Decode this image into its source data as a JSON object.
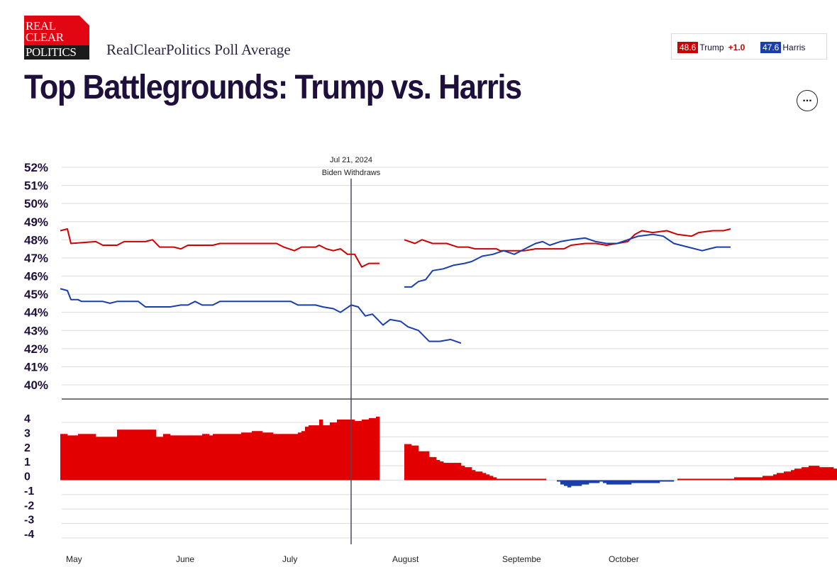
{
  "header": {
    "logo": [
      "REAL",
      "CLEAR",
      "POLITICS"
    ],
    "site_title": "RealClearPolitics Poll Average",
    "page_title": "Top Battlegrounds: Trump vs. Harris",
    "more_icon": "ellipsis-icon"
  },
  "legend": {
    "trump": {
      "value": "48.6",
      "name": "Trump",
      "spread": "+1.0",
      "color": "#cc0000"
    },
    "harris": {
      "value": "47.6",
      "name": "Harris",
      "color": "#1a3faa"
    }
  },
  "chart_data": {
    "type": "line",
    "x_range": [
      "2024-04-30",
      "2024-11-05"
    ],
    "x_ticks": [
      {
        "label": "May",
        "date": "2024-05-01"
      },
      {
        "label": "June",
        "date": "2024-06-01"
      },
      {
        "label": "July",
        "date": "2024-07-01"
      },
      {
        "label": "August",
        "date": "2024-08-01"
      },
      {
        "label": "Septembe",
        "date": "2024-09-01"
      },
      {
        "label": "October",
        "date": "2024-10-01"
      }
    ],
    "y_ticks": [
      "52%",
      "51%",
      "50%",
      "49%",
      "48%",
      "47%",
      "46%",
      "45%",
      "44%",
      "43%",
      "42%",
      "41%",
      "40%"
    ],
    "ylim": [
      40,
      52
    ],
    "annotation": {
      "date": "2024-07-21",
      "line1": "Jul 21, 2024",
      "line2": "Biden Withdraws"
    },
    "series": [
      {
        "name": "Trump",
        "color": "#cc0000",
        "segments": [
          [
            [
              "2024-04-30",
              48.5
            ],
            [
              "2024-05-02",
              48.6
            ],
            [
              "2024-05-03",
              47.8
            ],
            [
              "2024-05-10",
              47.9
            ],
            [
              "2024-05-12",
              47.7
            ],
            [
              "2024-05-16",
              47.7
            ],
            [
              "2024-05-18",
              47.9
            ],
            [
              "2024-05-24",
              47.9
            ],
            [
              "2024-05-26",
              48.0
            ],
            [
              "2024-05-28",
              47.6
            ],
            [
              "2024-06-01",
              47.6
            ],
            [
              "2024-06-03",
              47.5
            ],
            [
              "2024-06-05",
              47.7
            ],
            [
              "2024-06-12",
              47.7
            ],
            [
              "2024-06-14",
              47.8
            ],
            [
              "2024-06-30",
              47.8
            ],
            [
              "2024-07-02",
              47.6
            ],
            [
              "2024-07-05",
              47.4
            ],
            [
              "2024-07-07",
              47.6
            ],
            [
              "2024-07-11",
              47.6
            ],
            [
              "2024-07-12",
              47.7
            ],
            [
              "2024-07-14",
              47.5
            ],
            [
              "2024-07-16",
              47.4
            ],
            [
              "2024-07-18",
              47.5
            ],
            [
              "2024-07-20",
              47.2
            ],
            [
              "2024-07-22",
              47.2
            ],
            [
              "2024-07-24",
              46.5
            ],
            [
              "2024-07-26",
              46.7
            ],
            [
              "2024-07-29",
              46.7
            ]
          ],
          [
            [
              "2024-08-05",
              48.0
            ],
            [
              "2024-08-08",
              47.8
            ],
            [
              "2024-08-10",
              48.0
            ],
            [
              "2024-08-13",
              47.8
            ],
            [
              "2024-08-17",
              47.8
            ],
            [
              "2024-08-20",
              47.6
            ],
            [
              "2024-08-23",
              47.6
            ],
            [
              "2024-08-25",
              47.5
            ],
            [
              "2024-08-31",
              47.5
            ],
            [
              "2024-09-01",
              47.4
            ],
            [
              "2024-09-05",
              47.4
            ],
            [
              "2024-09-08",
              47.4
            ],
            [
              "2024-09-11",
              47.5
            ],
            [
              "2024-09-19",
              47.5
            ],
            [
              "2024-09-21",
              47.7
            ],
            [
              "2024-09-25",
              47.8
            ],
            [
              "2024-09-28",
              47.8
            ],
            [
              "2024-10-01",
              47.7
            ],
            [
              "2024-10-04",
              47.8
            ],
            [
              "2024-10-07",
              47.9
            ],
            [
              "2024-10-09",
              48.3
            ],
            [
              "2024-10-11",
              48.5
            ],
            [
              "2024-10-14",
              48.4
            ],
            [
              "2024-10-18",
              48.5
            ],
            [
              "2024-10-21",
              48.3
            ],
            [
              "2024-10-25",
              48.2
            ],
            [
              "2024-10-27",
              48.4
            ],
            [
              "2024-10-31",
              48.5
            ],
            [
              "2024-11-03",
              48.5
            ],
            [
              "2024-11-05",
              48.6
            ]
          ]
        ]
      },
      {
        "name": "Harris",
        "color": "#1a3faa",
        "segments": [
          [
            [
              "2024-04-30",
              45.3
            ],
            [
              "2024-05-02",
              45.2
            ],
            [
              "2024-05-03",
              44.7
            ],
            [
              "2024-05-05",
              44.7
            ],
            [
              "2024-05-06",
              44.6
            ],
            [
              "2024-05-12",
              44.6
            ],
            [
              "2024-05-14",
              44.5
            ],
            [
              "2024-05-16",
              44.6
            ],
            [
              "2024-05-22",
              44.6
            ],
            [
              "2024-05-24",
              44.3
            ],
            [
              "2024-05-31",
              44.3
            ],
            [
              "2024-06-03",
              44.4
            ],
            [
              "2024-06-05",
              44.4
            ],
            [
              "2024-06-07",
              44.6
            ],
            [
              "2024-06-09",
              44.4
            ],
            [
              "2024-06-12",
              44.4
            ],
            [
              "2024-06-14",
              44.6
            ],
            [
              "2024-06-21",
              44.6
            ],
            [
              "2024-06-23",
              44.6
            ],
            [
              "2024-07-04",
              44.6
            ],
            [
              "2024-07-06",
              44.4
            ],
            [
              "2024-07-11",
              44.4
            ],
            [
              "2024-07-13",
              44.3
            ],
            [
              "2024-07-16",
              44.2
            ],
            [
              "2024-07-18",
              44.0
            ],
            [
              "2024-07-21",
              44.4
            ],
            [
              "2024-07-23",
              44.3
            ],
            [
              "2024-07-25",
              43.8
            ],
            [
              "2024-07-27",
              43.9
            ],
            [
              "2024-07-30",
              43.3
            ],
            [
              "2024-08-01",
              43.6
            ],
            [
              "2024-08-04",
              43.5
            ],
            [
              "2024-08-06",
              43.2
            ],
            [
              "2024-08-09",
              43.0
            ],
            [
              "2024-08-12",
              42.4
            ],
            [
              "2024-08-15",
              42.4
            ],
            [
              "2024-08-18",
              42.5
            ],
            [
              "2024-08-21",
              42.3
            ]
          ],
          [
            [
              "2024-08-05",
              45.4
            ],
            [
              "2024-08-07",
              45.4
            ],
            [
              "2024-08-09",
              45.7
            ],
            [
              "2024-08-11",
              45.8
            ],
            [
              "2024-08-13",
              46.3
            ],
            [
              "2024-08-16",
              46.4
            ],
            [
              "2024-08-19",
              46.6
            ],
            [
              "2024-08-22",
              46.7
            ],
            [
              "2024-08-24",
              46.8
            ],
            [
              "2024-08-27",
              47.1
            ],
            [
              "2024-08-30",
              47.2
            ],
            [
              "2024-09-02",
              47.4
            ],
            [
              "2024-09-05",
              47.2
            ],
            [
              "2024-09-08",
              47.5
            ],
            [
              "2024-09-11",
              47.8
            ],
            [
              "2024-09-13",
              47.9
            ],
            [
              "2024-09-15",
              47.7
            ],
            [
              "2024-09-18",
              47.9
            ],
            [
              "2024-09-21",
              48.0
            ],
            [
              "2024-09-25",
              48.1
            ],
            [
              "2024-09-28",
              47.9
            ],
            [
              "2024-10-01",
              47.8
            ],
            [
              "2024-10-04",
              47.8
            ],
            [
              "2024-10-07",
              48.0
            ],
            [
              "2024-10-10",
              48.2
            ],
            [
              "2024-10-14",
              48.3
            ],
            [
              "2024-10-17",
              48.2
            ],
            [
              "2024-10-20",
              47.8
            ],
            [
              "2024-10-24",
              47.6
            ],
            [
              "2024-10-28",
              47.4
            ],
            [
              "2024-10-30",
              47.5
            ],
            [
              "2024-11-01",
              47.6
            ],
            [
              "2024-11-05",
              47.6
            ]
          ]
        ]
      }
    ],
    "spread": {
      "y_ticks": [
        "4",
        "3",
        "2",
        "1",
        "0",
        "-1",
        "-2",
        "-3",
        "-4"
      ],
      "ylim": [
        -4,
        4
      ],
      "trump_color": "#e30000",
      "harris_color": "#1a3faa",
      "segments": [
        {
          "start": "2024-04-30",
          "values": [
            3.2,
            3.2,
            3.1,
            3.1,
            3.1,
            3.2,
            3.2,
            3.2,
            3.2,
            3.2,
            3.0,
            3.0,
            3.0,
            3.0,
            3.0,
            3.0,
            3.5,
            3.5,
            3.5,
            3.5,
            3.5,
            3.5,
            3.5,
            3.5,
            3.5,
            3.5,
            3.5,
            3.0,
            3.0,
            3.2,
            3.2,
            3.1,
            3.1,
            3.1,
            3.1,
            3.1,
            3.1,
            3.1,
            3.1,
            3.1,
            3.2,
            3.2,
            3.1,
            3.2,
            3.2,
            3.2,
            3.2,
            3.2,
            3.2,
            3.2,
            3.2,
            3.3,
            3.3,
            3.3,
            3.4,
            3.4,
            3.4,
            3.3,
            3.3,
            3.3,
            3.2,
            3.2,
            3.2,
            3.2,
            3.2,
            3.2,
            3.2,
            3.3,
            3.4,
            3.7,
            3.8,
            3.8,
            3.8,
            4.2,
            3.8,
            3.8,
            4.0,
            4.0,
            4.2,
            4.2,
            4.2,
            4.2,
            4.2,
            4.1,
            4.1,
            4.2,
            4.2,
            4.3,
            4.3,
            4.4
          ]
        },
        {
          "start": "2024-08-05",
          "values": [
            2.5,
            2.5,
            2.4,
            2.4,
            2.0,
            2.0,
            2.0,
            1.6,
            1.6,
            1.4,
            1.3,
            1.2,
            1.2,
            1.2,
            1.2,
            1.2,
            1.0,
            0.9,
            0.9,
            0.7,
            0.6,
            0.6,
            0.5,
            0.4,
            0.3,
            0.2,
            0.1,
            0.1,
            0.1,
            0.1,
            0.1,
            0.1,
            0.1,
            0.1,
            0.1,
            0.1,
            0.1,
            0.1,
            0.1,
            0.1,
            0.0,
            0.0,
            0.0,
            -0.1,
            -0.3,
            -0.4,
            -0.5,
            -0.4,
            -0.4,
            -0.4,
            -0.3,
            -0.3,
            -0.2,
            -0.2,
            -0.2,
            -0.1,
            -0.2,
            -0.3,
            -0.3,
            -0.3,
            -0.3,
            -0.3,
            -0.3,
            -0.3,
            -0.2,
            -0.2,
            -0.2,
            -0.2,
            -0.2,
            -0.2,
            -0.2,
            -0.2,
            -0.1,
            -0.1,
            -0.1,
            -0.1,
            0.0,
            0.1,
            0.1,
            0.1,
            0.1,
            0.1,
            0.1,
            0.1,
            0.1,
            0.1,
            0.1,
            0.1,
            0.1,
            0.1,
            0.1,
            0.1,
            0.1,
            0.2,
            0.2,
            0.2,
            0.2,
            0.2,
            0.2,
            0.2,
            0.2,
            0.3,
            0.3,
            0.3,
            0.4,
            0.5,
            0.5,
            0.6,
            0.6,
            0.7,
            0.8,
            0.8,
            0.9,
            0.9,
            1.0,
            1.0,
            1.0,
            0.9,
            0.9,
            0.9,
            0.9,
            0.8,
            0.8,
            0.9,
            0.9,
            0.9,
            0.9,
            0.9,
            0.9,
            1.0
          ]
        }
      ]
    }
  }
}
